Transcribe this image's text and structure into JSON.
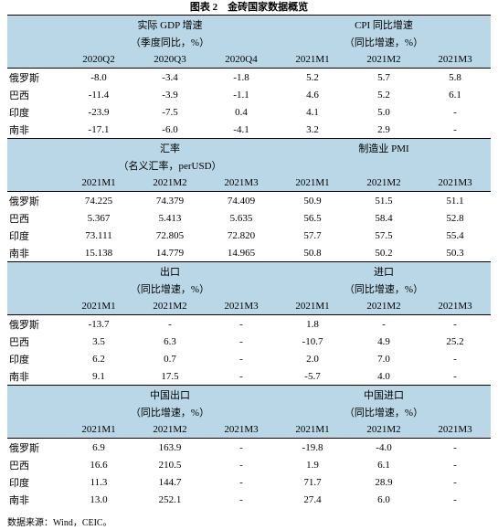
{
  "title": "图表 2　金砖国家数据概览",
  "blocks": [
    {
      "left": {
        "title": "实际 GDP 增速",
        "subtitle": "（季度同比，%）",
        "periods": [
          "2020Q2",
          "2020Q3",
          "2020Q4"
        ]
      },
      "right": {
        "title": "CPI 同比增速",
        "subtitle": "（同比增速，%）",
        "periods": [
          "2021M1",
          "2021M2",
          "2021M3"
        ]
      },
      "rows": [
        {
          "country": "俄罗斯",
          "values": [
            "-8.0",
            "-3.4",
            "-1.8",
            "5.2",
            "5.7",
            "5.8"
          ]
        },
        {
          "country": "巴西",
          "values": [
            "-11.4",
            "-3.9",
            "-1.1",
            "4.6",
            "5.2",
            "6.1"
          ]
        },
        {
          "country": "印度",
          "values": [
            "-23.9",
            "-7.5",
            "0.4",
            "4.1",
            "5.0",
            "-"
          ]
        },
        {
          "country": "南非",
          "values": [
            "-17.1",
            "-6.0",
            "-4.1",
            "3.2",
            "2.9",
            "-"
          ]
        }
      ]
    },
    {
      "left": {
        "title": "汇率",
        "subtitle": "（名义汇率，perUSD）",
        "periods": [
          "2021M1",
          "2021M2",
          "2021M3"
        ]
      },
      "right": {
        "title": "制造业 PMI",
        "periods": [
          "2021M1",
          "2021M2",
          "2021M3"
        ]
      },
      "rows": [
        {
          "country": "俄罗斯",
          "values": [
            "74.225",
            "74.379",
            "74.409",
            "50.9",
            "51.5",
            "51.1"
          ]
        },
        {
          "country": "巴西",
          "values": [
            "5.367",
            "5.413",
            "5.635",
            "56.5",
            "58.4",
            "52.8"
          ]
        },
        {
          "country": "印度",
          "values": [
            "73.111",
            "72.805",
            "72.820",
            "57.7",
            "57.5",
            "55.4"
          ]
        },
        {
          "country": "南非",
          "values": [
            "15.138",
            "14.779",
            "14.965",
            "50.8",
            "50.2",
            "50.3"
          ]
        }
      ]
    },
    {
      "left": {
        "title": "出口",
        "subtitle": "（同比增速，%）",
        "periods": [
          "2021M1",
          "2021M2",
          "2021M3"
        ]
      },
      "right": {
        "title": "进口",
        "subtitle": "（同比增速，%）",
        "periods": [
          "2021M1",
          "2021M2",
          "2021M3"
        ]
      },
      "rows": [
        {
          "country": "俄罗斯",
          "values": [
            "-13.7",
            "-",
            "-",
            "1.8",
            "-",
            "-"
          ]
        },
        {
          "country": "巴西",
          "values": [
            "3.5",
            "6.3",
            "-",
            "-10.7",
            "4.9",
            "25.2"
          ]
        },
        {
          "country": "印度",
          "values": [
            "6.2",
            "0.7",
            "-",
            "2.0",
            "7.0",
            "-"
          ]
        },
        {
          "country": "南非",
          "values": [
            "9.1",
            "17.5",
            "-",
            "-5.7",
            "4.0",
            "-"
          ]
        }
      ]
    },
    {
      "left": {
        "title": "中国出口",
        "subtitle": "（同比增速，%）",
        "periods": [
          "2021M1",
          "2021M2",
          "2021M3"
        ]
      },
      "right": {
        "title": "中国进口",
        "subtitle": "（同比增速，%）",
        "periods": [
          "2021M1",
          "2021M2",
          "2021M3"
        ]
      },
      "rows": [
        {
          "country": "俄罗斯",
          "values": [
            "6.9",
            "163.9",
            "-",
            "-19.8",
            "-4.0",
            "-"
          ]
        },
        {
          "country": "巴西",
          "values": [
            "16.6",
            "210.5",
            "-",
            "1.9",
            "6.1",
            "-"
          ]
        },
        {
          "country": "印度",
          "values": [
            "11.3",
            "144.7",
            "-",
            "71.7",
            "28.9",
            "-"
          ]
        },
        {
          "country": "南非",
          "values": [
            "13.0",
            "252.1",
            "-",
            "27.4",
            "6.0",
            "-"
          ]
        }
      ]
    }
  ],
  "source": "数据来源：Wind，CEIC。"
}
